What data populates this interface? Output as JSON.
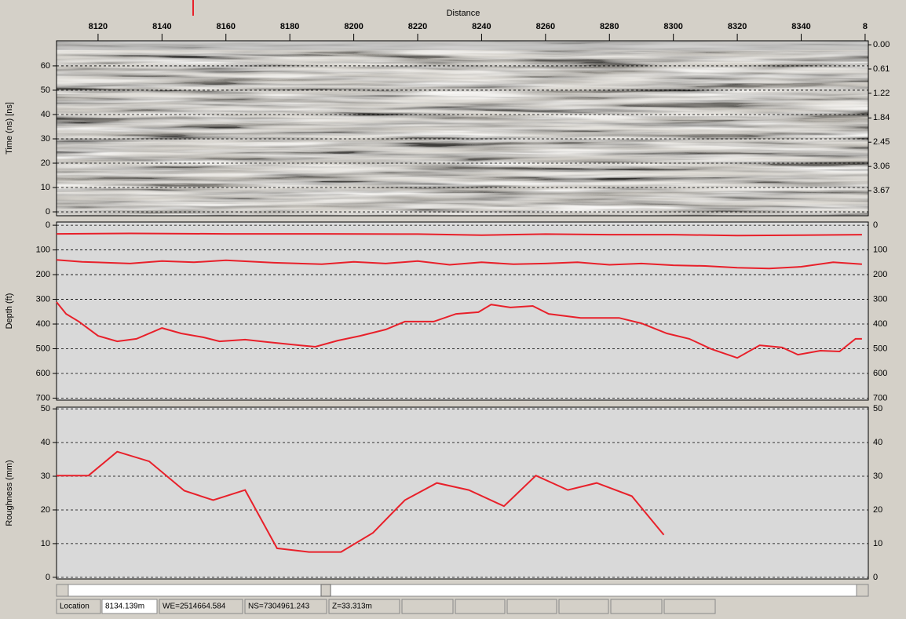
{
  "chart_data": [
    {
      "type": "radargram",
      "xlabel": "Distance",
      "xlim": [
        8107,
        8361
      ],
      "xticks": [
        8120,
        8140,
        8160,
        8180,
        8200,
        8220,
        8240,
        8260,
        8280,
        8300,
        8320,
        8340,
        {
          "value": 8360,
          "label": "8"
        }
      ],
      "ylabel": "Time (ns) [ns]",
      "ylim": [
        -1.6,
        70.3
      ],
      "yticks": [
        0,
        10,
        20,
        30,
        40,
        50,
        60
      ],
      "y2lim": [
        -0.1,
        4.3
      ],
      "y2ticks": [
        {
          "value": 0,
          "label": "0.00"
        },
        0.61,
        1.22,
        1.84,
        2.45,
        3.06,
        3.67
      ],
      "grid": true
    },
    {
      "type": "line",
      "ylabel": "Depth (ft)",
      "xlim": [
        8107,
        8361
      ],
      "ylim": [
        -13,
        708
      ],
      "inverted": true,
      "yticks": [
        0,
        100,
        200,
        300,
        400,
        500,
        600,
        700
      ],
      "grid": true,
      "series": [
        {
          "color": "#e8202a",
          "x": [
            8107,
            8130,
            8160,
            8190,
            8220,
            8240,
            8260,
            8280,
            8300,
            8320,
            8340,
            8359
          ],
          "values": [
            35,
            33,
            35,
            35,
            36,
            40,
            36,
            38,
            38,
            42,
            40,
            38
          ]
        },
        {
          "color": "#e8202a",
          "x": [
            8107,
            8115,
            8130,
            8140,
            8150,
            8160,
            8175,
            8190,
            8200,
            8210,
            8220,
            8230,
            8240,
            8250,
            8260,
            8270,
            8280,
            8290,
            8300,
            8310,
            8320,
            8330,
            8340,
            8350,
            8359
          ],
          "values": [
            140,
            148,
            155,
            145,
            150,
            142,
            152,
            158,
            148,
            155,
            145,
            160,
            150,
            158,
            155,
            150,
            160,
            155,
            162,
            165,
            172,
            175,
            168,
            150,
            158
          ]
        },
        {
          "color": "#e8202a",
          "x": [
            8107,
            8110,
            8114,
            8120,
            8126,
            8132,
            8140,
            8146,
            8153,
            8158,
            8166,
            8173,
            8183,
            8188,
            8195,
            8202,
            8210,
            8216,
            8225,
            8232,
            8239,
            8243,
            8249,
            8256,
            8261,
            8271,
            8283,
            8290,
            8298,
            8305,
            8312,
            8320,
            8327,
            8334,
            8339,
            8346,
            8352,
            8357,
            8359
          ],
          "values": [
            311,
            359,
            390,
            448,
            470,
            460,
            416,
            438,
            454,
            470,
            463,
            473,
            486,
            492,
            467,
            448,
            422,
            390,
            390,
            359,
            352,
            321,
            333,
            327,
            359,
            375,
            375,
            397,
            438,
            460,
            502,
            537,
            486,
            495,
            524,
            508,
            511,
            460,
            460
          ]
        }
      ]
    },
    {
      "type": "line",
      "ylabel": "Roughness (mm)",
      "xlim": [
        8107,
        8361
      ],
      "ylim": [
        -0.5,
        50.5
      ],
      "yticks": [
        0,
        10,
        20,
        30,
        40,
        50
      ],
      "grid": true,
      "series": [
        {
          "color": "#e8202a",
          "x": [
            8107,
            8117,
            8126,
            8136,
            8147,
            8156,
            8166,
            8176,
            8186,
            8196,
            8206,
            8216,
            8226,
            8236,
            8247,
            8257,
            8267,
            8276,
            8287,
            8297
          ],
          "values": [
            30.2,
            30.2,
            37.3,
            34.4,
            25.7,
            22.9,
            25.9,
            8.6,
            7.5,
            7.5,
            13.2,
            22.9,
            28,
            25.9,
            21.1,
            30.2,
            25.9,
            28,
            24.1,
            12.6
          ]
        }
      ]
    }
  ],
  "status_bar": {
    "fields": [
      "Location",
      "8134.139m",
      "WE=2514664.584",
      "NS=7304961.243",
      "Z=33.313m"
    ]
  }
}
